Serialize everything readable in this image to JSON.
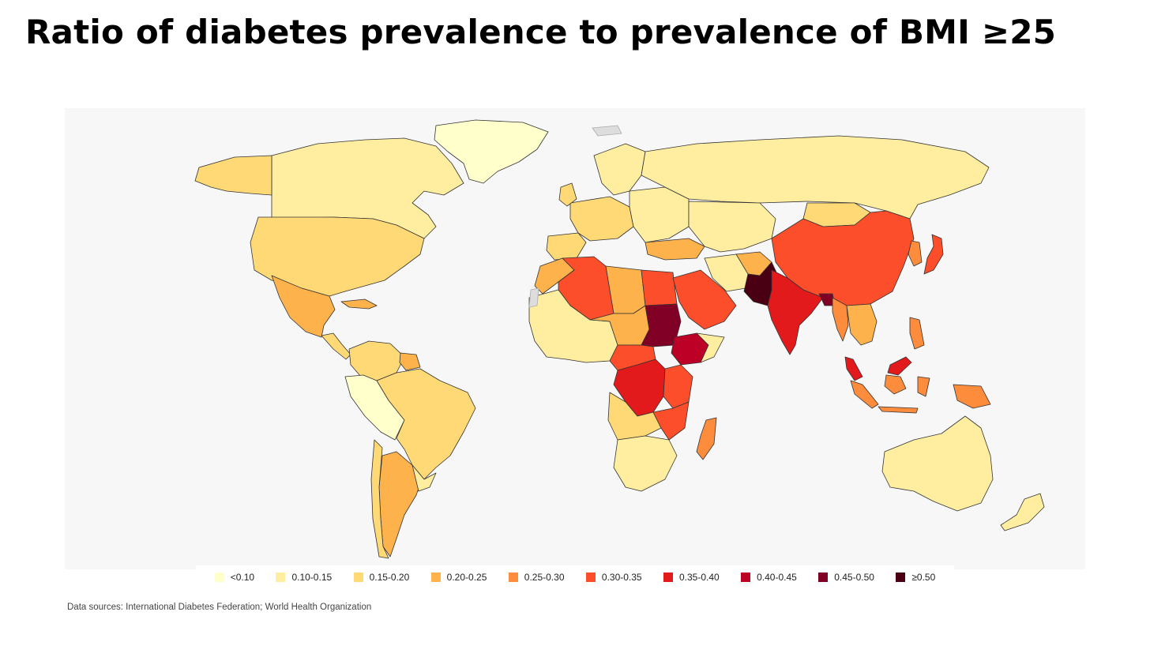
{
  "title": "Ratio of diabetes prevalence to prevalence of BMI ≥25",
  "source": "Data sources: International Diabetes Federation; World Health Organization",
  "colors": {
    "background": "#ffffff",
    "ocean": "#f7f7f7",
    "no_data": "#dddddd",
    "border": "#333333"
  },
  "legend": [
    {
      "label": "<0.10",
      "color": "#ffffcc"
    },
    {
      "label": "0.10-0.15",
      "color": "#ffeda0"
    },
    {
      "label": "0.15-0.20",
      "color": "#fed976"
    },
    {
      "label": "0.20-0.25",
      "color": "#feb24c"
    },
    {
      "label": "0.25-0.30",
      "color": "#fd8d3c"
    },
    {
      "label": "0.30-0.35",
      "color": "#fc4e2a"
    },
    {
      "label": "0.35-0.40",
      "color": "#e31a1c"
    },
    {
      "label": "0.40-0.45",
      "color": "#bd0026"
    },
    {
      "label": "0.45-0.50",
      "color": "#800026"
    },
    {
      "label": "≥0.50",
      "color": "#4a0012"
    }
  ],
  "regions": {
    "greenland": "<0.10",
    "canada": "0.10-0.15",
    "alaska": "0.15-0.20",
    "usa": "0.15-0.20",
    "mexico": "0.20-0.25",
    "central_america": "0.15-0.20",
    "colombia_venezuela": "0.15-0.20",
    "guyana": "0.20-0.25",
    "peru_bolivia": "<0.10",
    "brazil": "0.15-0.20",
    "argentina": "0.20-0.25",
    "chile": "0.15-0.20",
    "uruguay_paraguay": "0.10-0.15",
    "western_europe": "0.15-0.20",
    "iberia": "0.15-0.20",
    "northern_europe": "0.10-0.15",
    "eastern_europe": "0.10-0.15",
    "russia": "0.10-0.15",
    "kazakhstan_central_asia": "0.10-0.15",
    "turkey": "0.20-0.25",
    "mongolia": "0.15-0.20",
    "china": "0.30-0.35",
    "japan": "0.30-0.35",
    "korea": "0.25-0.30",
    "iran": "0.10-0.15",
    "afghanistan": "0.20-0.25",
    "pakistan": "≥0.50",
    "india": "0.35-0.40",
    "bangladesh": "0.45-0.50",
    "myanmar": "0.25-0.30",
    "se_asia_mainland": "0.20-0.25",
    "malaysia": "0.35-0.40",
    "indonesia": "0.25-0.30",
    "philippines": "0.25-0.30",
    "png": "0.25-0.30",
    "australia": "0.10-0.15",
    "new_zealand": "0.10-0.15",
    "morocco": "0.20-0.25",
    "algeria": "0.30-0.35",
    "libya": "0.20-0.25",
    "egypt": "0.30-0.35",
    "arabian_peninsula": "0.30-0.35",
    "west_africa": "0.10-0.15",
    "niger_chad": "0.20-0.25",
    "sudan": "0.45-0.50",
    "ethiopia": "0.40-0.45",
    "central_africa": "0.30-0.35",
    "drc": "0.35-0.40",
    "tanzania": "0.30-0.35",
    "angola_zambia": "0.15-0.20",
    "mozambique_malawi": "0.30-0.35",
    "southern_africa": "0.10-0.15",
    "madagascar": "0.25-0.30",
    "east_horn": "0.10-0.15",
    "no_data_areas": "no data"
  }
}
